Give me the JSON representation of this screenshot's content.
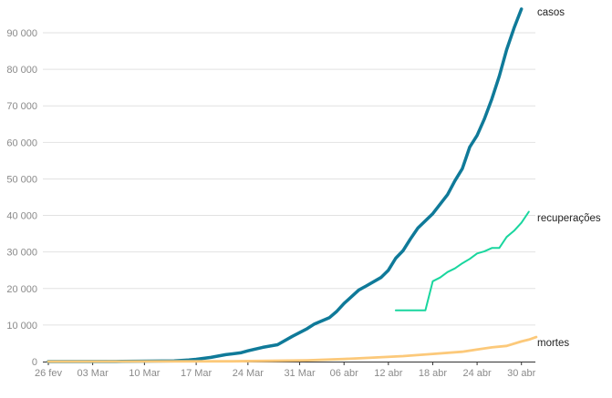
{
  "chart_data": {
    "type": "line",
    "title": "",
    "xlabel": "",
    "ylabel": "",
    "ylim": [
      0,
      97000
    ],
    "grid": true,
    "legend": "inline-right",
    "y_ticks": [
      0,
      10000,
      20000,
      30000,
      40000,
      50000,
      60000,
      70000,
      80000,
      90000
    ],
    "y_tick_labels": [
      "0",
      "10 000",
      "20 000",
      "30 000",
      "40 000",
      "50 000",
      "60 000",
      "70 000",
      "80 000",
      "90 000"
    ],
    "x_tick_labels": [
      "26 fev",
      "03 Mar",
      "10 Mar",
      "17 Mar",
      "24 Mar",
      "31 Mar",
      "06 abr",
      "12 abr",
      "18 abr",
      "24 abr",
      "30 abr"
    ],
    "x_tick_days": [
      0,
      6,
      13,
      20,
      27,
      34,
      40,
      46,
      52,
      58,
      64
    ],
    "series": [
      {
        "name": "casos",
        "color": "#0f7a99",
        "values": [
          [
            0,
            0
          ],
          [
            10,
            60
          ],
          [
            17,
            200
          ],
          [
            19,
            430
          ],
          [
            20,
            620
          ],
          [
            22,
            1150
          ],
          [
            24,
            1900
          ],
          [
            26,
            2400
          ],
          [
            27,
            2950
          ],
          [
            29,
            3900
          ],
          [
            31,
            4600
          ],
          [
            33,
            6900
          ],
          [
            35,
            9000
          ],
          [
            36,
            10300
          ],
          [
            38,
            12000
          ],
          [
            39,
            13700
          ],
          [
            40,
            15900
          ],
          [
            42,
            19600
          ],
          [
            43,
            20700
          ],
          [
            45,
            23000
          ],
          [
            46,
            25000
          ],
          [
            47,
            28300
          ],
          [
            48,
            30400
          ],
          [
            49,
            33600
          ],
          [
            50,
            36600
          ],
          [
            52,
            40500
          ],
          [
            54,
            45700
          ],
          [
            55,
            49500
          ],
          [
            56,
            52800
          ],
          [
            57,
            58700
          ],
          [
            58,
            61900
          ],
          [
            59,
            66500
          ],
          [
            60,
            71900
          ],
          [
            61,
            78100
          ],
          [
            62,
            85400
          ],
          [
            63,
            91300
          ],
          [
            64,
            96500
          ]
        ]
      },
      {
        "name": "recuperações",
        "color": "#19d69e",
        "values": [
          [
            47,
            14000
          ],
          [
            51,
            14000
          ],
          [
            52,
            22000
          ],
          [
            53,
            23000
          ],
          [
            54,
            24500
          ],
          [
            55,
            25500
          ],
          [
            56,
            26900
          ],
          [
            57,
            28100
          ],
          [
            58,
            29600
          ],
          [
            59,
            30200
          ],
          [
            60,
            31100
          ],
          [
            61,
            31100
          ],
          [
            62,
            34100
          ],
          [
            63,
            35800
          ],
          [
            64,
            38000
          ],
          [
            65,
            41000
          ]
        ]
      },
      {
        "name": "mortes",
        "color": "#fcc97a",
        "values": [
          [
            0,
            0
          ],
          [
            25,
            70
          ],
          [
            30,
            200
          ],
          [
            35,
            350
          ],
          [
            40,
            700
          ],
          [
            44,
            1100
          ],
          [
            48,
            1500
          ],
          [
            52,
            2100
          ],
          [
            56,
            2700
          ],
          [
            58,
            3300
          ],
          [
            60,
            3900
          ],
          [
            62,
            4300
          ],
          [
            64,
            5500
          ],
          [
            65,
            6000
          ],
          [
            66,
            6700
          ]
        ]
      }
    ]
  }
}
